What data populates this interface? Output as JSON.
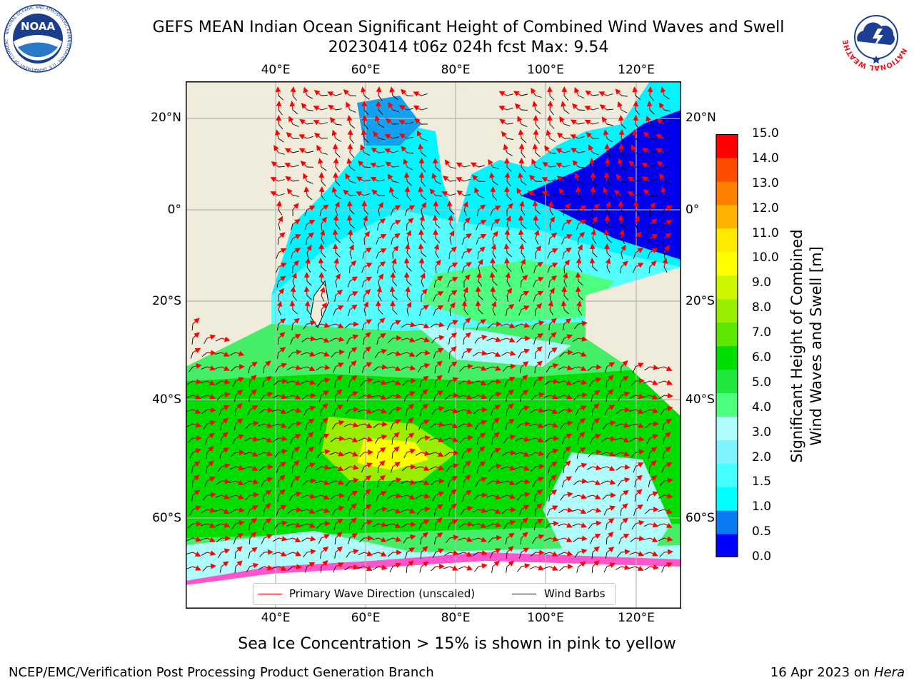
{
  "title": "GEFS MEAN Indian Ocean Significant Height of Combined Wind Waves and Swell",
  "subtitle": "20230414 t06z 024h fcst   Max: 9.54",
  "longitude_labels": [
    "40°E",
    "60°E",
    "80°E",
    "100°E",
    "120°E"
  ],
  "latitude_labels": [
    "20°N",
    "0°",
    "20°S",
    "40°S",
    "60°S"
  ],
  "colorbar": {
    "label_line1": "Significant Height of Combined",
    "label_line2": "Wind Waves and Swell [m]",
    "ticks": [
      "0.0",
      "0.5",
      "1.0",
      "1.5",
      "2.0",
      "3.0",
      "4.0",
      "5.0",
      "6.0",
      "7.0",
      "8.0",
      "9.0",
      "10.0",
      "11.0",
      "12.0",
      "13.0",
      "14.0",
      "15.0"
    ],
    "colors": [
      "#0000ff",
      "#0a7af2",
      "#00ffff",
      "#43ffff",
      "#7ff4ff",
      "#aefcfc",
      "#4cff7f",
      "#1ee63c",
      "#00dd00",
      "#5fe600",
      "#99ee00",
      "#ccf500",
      "#ffff00",
      "#ffea00",
      "#ffb200",
      "#ff8000",
      "#ff4d00",
      "#ff0000"
    ]
  },
  "legend": {
    "wave_direction": "Primary Wave Direction (unscaled)",
    "wind_barbs": "Wind Barbs",
    "wave_color": "#ff0000",
    "barb_color": "#000000"
  },
  "sea_ice_note": "Sea Ice Concentration > 15% is shown in pink to yellow",
  "footer": {
    "left": "NCEP/EMC/Verification Post Processing Product Generation Branch",
    "date": "16 Apr 2023 on ",
    "machine": "Hera"
  },
  "logos": {
    "noaa_text": "NOAA",
    "noaa_ring": "NATIONAL OCEANIC AND ATMOSPHERIC ADMINISTRATION · U.S. DEPARTMENT OF COMMERCE",
    "nws_ring": "NATIONAL WEATHER SERVICE"
  },
  "colors": {
    "land": "#efecdb",
    "grid": "#b5b5b5"
  }
}
